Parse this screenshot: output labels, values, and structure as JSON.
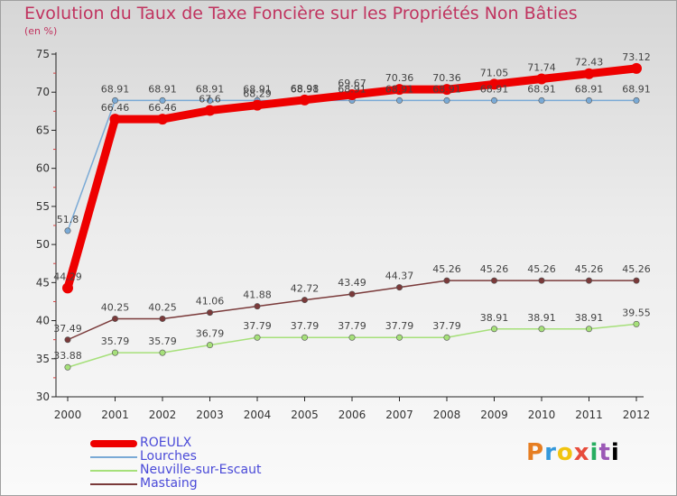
{
  "chart_data": {
    "type": "line",
    "title": "Evolution du Taux de Taxe Foncière sur les Propriétés Non Bâties",
    "ylabel": "(en %)",
    "xlabel": "",
    "ylim": [
      30,
      75
    ],
    "yticks": [
      "30",
      "35",
      "40",
      "45",
      "50",
      "55",
      "60",
      "65",
      "70",
      "75"
    ],
    "categories": [
      "2000",
      "2001",
      "2002",
      "2003",
      "2004",
      "2005",
      "2006",
      "2007",
      "2008",
      "2009",
      "2010",
      "2011",
      "2012"
    ],
    "series": [
      {
        "name": "ROEULX",
        "color": "#ee0000",
        "values": [
          44.29,
          66.46,
          66.46,
          67.6,
          68.29,
          68.98,
          69.67,
          70.36,
          70.36,
          71.05,
          71.74,
          72.43,
          73.12
        ],
        "labels": [
          "44.29",
          "66.46",
          "66.46",
          "67.6",
          "68.29",
          "68.98",
          "69.67",
          "70.36",
          "70.36",
          "71.05",
          "71.74",
          "72.43",
          "73.12"
        ]
      },
      {
        "name": "Lourches",
        "color": "#7aaad6",
        "values": [
          51.8,
          68.91,
          68.91,
          68.91,
          68.91,
          68.91,
          68.91,
          68.91,
          68.91,
          68.91,
          68.91,
          68.91,
          68.91
        ],
        "labels": [
          "51.8",
          "68.91",
          "68.91",
          "68.91",
          "68.91",
          "68.91",
          "68.91",
          "68.91",
          "68.91",
          "68.91",
          "68.91",
          "68.91",
          "68.91"
        ]
      },
      {
        "name": "Neuville-sur-Escaut",
        "color": "#a6e07a",
        "values": [
          33.88,
          35.79,
          35.79,
          36.79,
          37.79,
          37.79,
          37.79,
          37.79,
          37.79,
          38.91,
          38.91,
          38.91,
          39.55
        ],
        "labels": [
          "33.88",
          "35.79",
          "35.79",
          "36.79",
          "37.79",
          "37.79",
          "37.79",
          "37.79",
          "37.79",
          "38.91",
          "38.91",
          "38.91",
          "39.55"
        ]
      },
      {
        "name": "Mastaing",
        "color": "#7a3a3a",
        "values": [
          37.49,
          40.25,
          40.25,
          41.06,
          41.88,
          42.72,
          43.49,
          44.37,
          45.26,
          45.26,
          45.26,
          45.26,
          45.26
        ],
        "labels": [
          "37.49",
          "40.25",
          "40.25",
          "41.06",
          "41.88",
          "42.72",
          "43.49",
          "44.37",
          "45.26",
          "45.26",
          "45.26",
          "45.26",
          "45.26"
        ]
      }
    ]
  },
  "logo": {
    "letters": [
      "P",
      "r",
      "o",
      "x",
      "i",
      "t",
      "i"
    ]
  }
}
